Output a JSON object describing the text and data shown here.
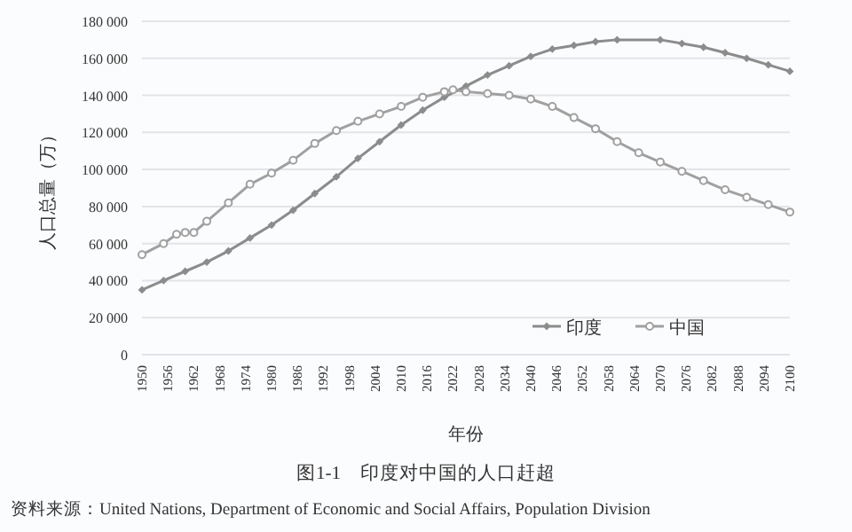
{
  "chart_data": {
    "type": "line",
    "title": "图1-1　印度对中国的人口赶超",
    "xlabel": "年份",
    "ylabel": "人口总量（万）",
    "annotations": [
      "资料来源：United Nations, Department of Economic and Social Affairs, Population Division"
    ],
    "series": [
      {
        "name": "印度",
        "color": "#8c8c8c",
        "marker": "diamond",
        "x": [
          1950,
          1955,
          1960,
          1965,
          1970,
          1975,
          1980,
          1985,
          1990,
          1995,
          2000,
          2005,
          2010,
          2015,
          2020,
          2025,
          2030,
          2035,
          2040,
          2045,
          2050,
          2055,
          2060,
          2070,
          2075,
          2080,
          2085,
          2090,
          2095,
          2100
        ],
        "values": [
          35000,
          40000,
          45000,
          50000,
          56000,
          63000,
          70000,
          78000,
          87000,
          96000,
          106000,
          115000,
          124000,
          132000,
          139000,
          145000,
          151000,
          156000,
          161000,
          165000,
          167000,
          169000,
          170000,
          170000,
          168000,
          166000,
          163000,
          160000,
          156500,
          153000
        ]
      },
      {
        "name": "中国",
        "color": "#a0a0a0",
        "marker": "circle",
        "x": [
          1950,
          1955,
          1958,
          1960,
          1962,
          1965,
          1970,
          1975,
          1980,
          1985,
          1990,
          1995,
          2000,
          2005,
          2010,
          2015,
          2020,
          2022,
          2025,
          2030,
          2035,
          2040,
          2045,
          2050,
          2055,
          2060,
          2065,
          2070,
          2075,
          2080,
          2085,
          2090,
          2095,
          2100
        ],
        "values": [
          54000,
          60000,
          65000,
          66000,
          66000,
          72000,
          82000,
          92000,
          98000,
          105000,
          114000,
          121000,
          126000,
          130000,
          134000,
          139000,
          142000,
          143000,
          142000,
          141000,
          140000,
          138000,
          134000,
          128000,
          122000,
          115000,
          109000,
          104000,
          99000,
          94000,
          89000,
          85000,
          81000,
          77000
        ]
      }
    ],
    "xlim": [
      1950,
      2100
    ],
    "xticks": [
      1950,
      1956,
      1962,
      1968,
      1974,
      1980,
      1986,
      1992,
      1998,
      2004,
      2010,
      2016,
      2022,
      2028,
      2034,
      2040,
      2046,
      2052,
      2058,
      2064,
      2070,
      2076,
      2082,
      2088,
      2094,
      2100
    ],
    "ylim": [
      0,
      180000
    ],
    "yticks": [
      {
        "value": 0,
        "label": "0"
      },
      {
        "value": 20000,
        "label": "20 000"
      },
      {
        "value": 40000,
        "label": "40 000"
      },
      {
        "value": 60000,
        "label": "60 000"
      },
      {
        "value": 80000,
        "label": "80 000"
      },
      {
        "value": 100000,
        "label": "100 000"
      },
      {
        "value": 120000,
        "label": "120 000"
      },
      {
        "value": 140000,
        "label": "140 000"
      },
      {
        "value": 160000,
        "label": "160 000"
      },
      {
        "value": 180000,
        "label": "180 000"
      }
    ],
    "grid": "y",
    "legend": "bottom"
  }
}
